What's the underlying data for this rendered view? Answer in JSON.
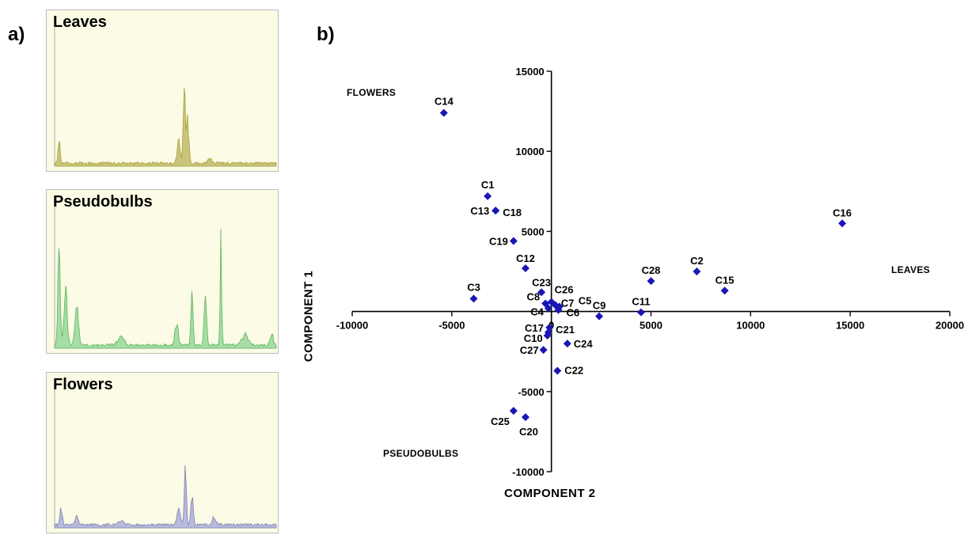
{
  "panels": {
    "a_label": "a)",
    "b_label": "b)"
  },
  "spectra": [
    {
      "title": "Leaves",
      "color": "#a8a23c",
      "fill": "#c9c47a"
    },
    {
      "title": "Pseudobulbs",
      "color": "#5cb85c",
      "fill": "#a6dca6"
    },
    {
      "title": "Flowers",
      "color": "#7e82b4",
      "fill": "#b7badb"
    }
  ],
  "chart_data": {
    "type": "scatter",
    "title": "",
    "xlabel": "COMPONENT 2",
    "ylabel": "COMPONENT 1",
    "xlim": [
      -10000,
      20000
    ],
    "ylim": [
      -10000,
      15000
    ],
    "xticks": [
      -10000,
      -5000,
      0,
      5000,
      10000,
      15000,
      20000
    ],
    "yticks": [
      -10000,
      -5000,
      5000,
      10000,
      15000
    ],
    "marker_color": "#1a16b5",
    "region_labels": {
      "top_left": "FLOWERS",
      "right": "LEAVES",
      "bottom_left": "PSEUDOBULBS"
    },
    "points": [
      {
        "label": "C14",
        "x": -5400,
        "y": 12400
      },
      {
        "label": "C1",
        "x": -3200,
        "y": 7200
      },
      {
        "label": "C13",
        "x": -2800,
        "y": 6300
      },
      {
        "label": "C18",
        "x": -2800,
        "y": 6300
      },
      {
        "label": "C19",
        "x": -1900,
        "y": 4400
      },
      {
        "label": "C12",
        "x": -1300,
        "y": 2700
      },
      {
        "label": "C3",
        "x": -3900,
        "y": 800
      },
      {
        "label": "C23",
        "x": -500,
        "y": 1200
      },
      {
        "label": "C26",
        "x": 0,
        "y": 600
      },
      {
        "label": "C8",
        "x": -300,
        "y": 500
      },
      {
        "label": "C7",
        "x": 200,
        "y": 400
      },
      {
        "label": "C5",
        "x": 400,
        "y": 300
      },
      {
        "label": "C4",
        "x": -150,
        "y": 200
      },
      {
        "label": "C6",
        "x": 350,
        "y": 100
      },
      {
        "label": "C9",
        "x": 2400,
        "y": -300
      },
      {
        "label": "C11",
        "x": 4500,
        "y": -50
      },
      {
        "label": "C28",
        "x": 5000,
        "y": 1900
      },
      {
        "label": "C2",
        "x": 7300,
        "y": 2500
      },
      {
        "label": "C15",
        "x": 8700,
        "y": 1300
      },
      {
        "label": "C16",
        "x": 14600,
        "y": 5500
      },
      {
        "label": "C17",
        "x": -150,
        "y": -1300
      },
      {
        "label": "C10",
        "x": -200,
        "y": -1500
      },
      {
        "label": "C21",
        "x": -100,
        "y": -1000
      },
      {
        "label": "C24",
        "x": 800,
        "y": -2000
      },
      {
        "label": "C27",
        "x": -400,
        "y": -2400
      },
      {
        "label": "C22",
        "x": 300,
        "y": -3700
      },
      {
        "label": "C25",
        "x": -1900,
        "y": -6200
      },
      {
        "label": "C20",
        "x": -1300,
        "y": -6600
      }
    ]
  }
}
